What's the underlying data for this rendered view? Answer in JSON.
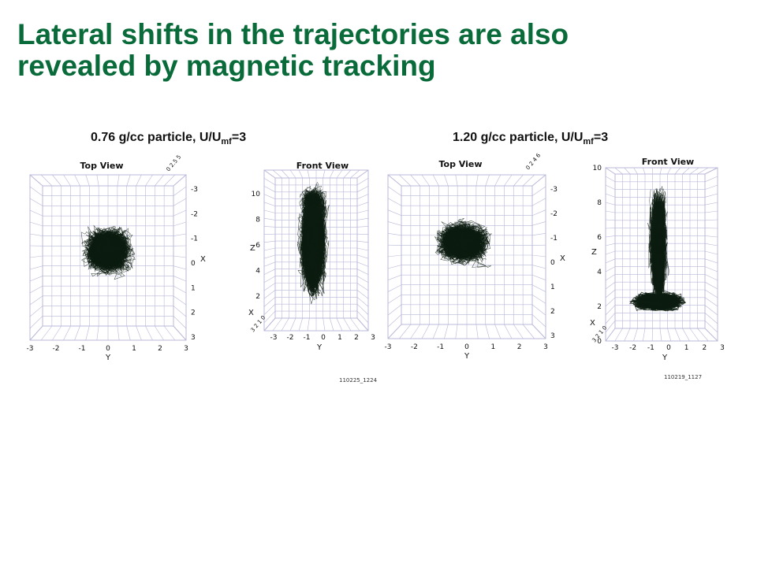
{
  "slide": {
    "title_line1": "Lateral shifts in the trajectories are also",
    "title_line2": "revealed by magnetic tracking"
  },
  "captions": [
    {
      "prefix": "0.76 g/cc particle, U/U",
      "sub": "mf",
      "suffix": "=3"
    },
    {
      "prefix": "1.20 g/cc particle, U/U",
      "sub": "mf",
      "suffix": "=3"
    }
  ],
  "panels": [
    {
      "top_view": {
        "title": "Top View",
        "x_label": "Y",
        "side_label": "X",
        "x_ticks": [
          "-3",
          "-2",
          "-1",
          "0",
          "1",
          "2",
          "3"
        ],
        "side_ticks": [
          "-3",
          "-2",
          "-1",
          "0",
          "1",
          "2",
          "3"
        ],
        "corner_text": "0 2.5 5"
      },
      "front_view": {
        "title": "Front View",
        "x_label": "Y",
        "z_label": "Z",
        "corner_label": "X",
        "x_ticks": [
          "-3",
          "-2",
          "-1",
          "0",
          "1",
          "2",
          "3"
        ],
        "z_ticks": [
          "2",
          "4",
          "6",
          "8",
          "10"
        ],
        "corner_ticks": "3 2 1 0"
      },
      "code": "110225_1224"
    },
    {
      "top_view": {
        "title": "Top View",
        "x_label": "Y",
        "side_label": "X",
        "x_ticks": [
          "-3",
          "-2",
          "-1",
          "0",
          "1",
          "2",
          "3"
        ],
        "side_ticks": [
          "-3",
          "-2",
          "-1",
          "0",
          "1",
          "2",
          "3"
        ],
        "corner_text": "0 2 4 6"
      },
      "front_view": {
        "title": "Front View",
        "x_label": "Y",
        "z_label": "Z",
        "corner_label": "X",
        "x_ticks": [
          "-3",
          "-2",
          "-1",
          "0",
          "1",
          "2",
          "3"
        ],
        "z_ticks": [
          "0",
          "2",
          "4",
          "6",
          "8",
          "10"
        ],
        "corner_ticks": "3 2 1 0"
      },
      "code": "110219_1127"
    }
  ],
  "colors": {
    "title": "#0a6b3a",
    "grid": "#b8b8d8",
    "trajectory": "#0c1c10"
  }
}
